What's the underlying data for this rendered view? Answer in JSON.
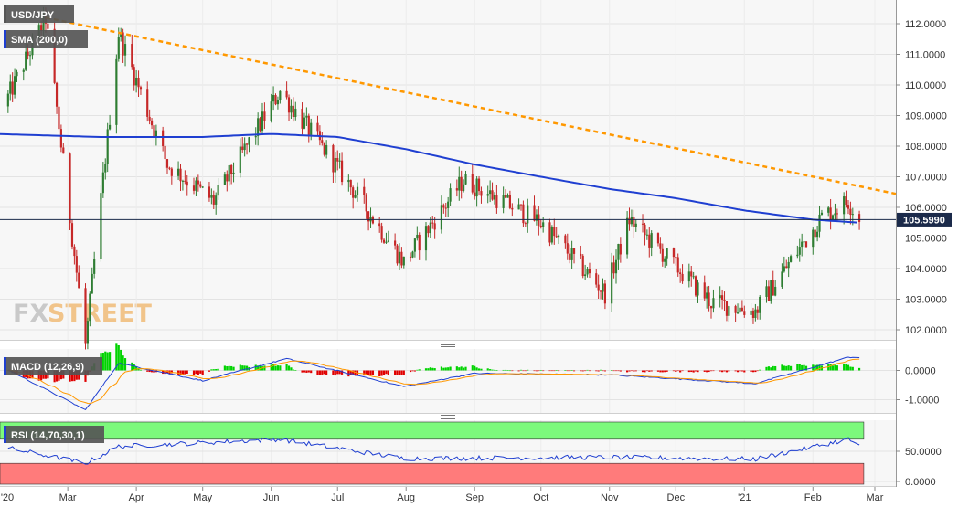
{
  "window": {
    "symbol_label": "USD/JPY"
  },
  "colors": {
    "up": "#2e7d32",
    "down": "#c62828",
    "sma": "#1f3fd1",
    "trend": "#ff9800",
    "macd_line": "#1f3fd1",
    "signal_line": "#ff9800",
    "hist_pos": "#00d300",
    "hist_neg": "#e00000",
    "rsi_line": "#1f3fd1",
    "rsi_ob": "#7cf97c",
    "rsi_os": "#ff7b7b"
  },
  "price_panel": {
    "indicator_tags": [
      "USD/JPY",
      "SMA (200,0)"
    ],
    "y_ticks": [
      "112.0000",
      "111.0000",
      "110.0000",
      "109.0000",
      "108.0000",
      "107.0000",
      "106.0000",
      "105.0000",
      "104.0000",
      "103.0000",
      "102.0000"
    ],
    "current_price": "105.5990",
    "logo_parts": [
      "FX",
      "STREET"
    ]
  },
  "macd_panel": {
    "label": "MACD (12,26,9)",
    "y_ticks": [
      "0.0000",
      "-1.0000"
    ]
  },
  "rsi_panel": {
    "label": "RSI (14,70,30,1)",
    "y_ticks": [
      "50.0000",
      "0.0000"
    ]
  },
  "x_axis": {
    "labels": [
      "'20",
      "Mar",
      "Apr",
      "May",
      "Jun",
      "Jul",
      "Aug",
      "Sep",
      "Oct",
      "Nov",
      "Dec",
      "'21",
      "Feb",
      "Mar"
    ]
  },
  "chart_data": [
    {
      "type": "line",
      "series": [
        {
          "name": "USD/JPY",
          "x": [
            "2020-02-01",
            "2020-02-20",
            "2020-03-09",
            "2020-03-24",
            "2020-04-15",
            "2020-05-06",
            "2020-06-05",
            "2020-06-30",
            "2020-07-31",
            "2020-08-27",
            "2020-10-01",
            "2020-10-30",
            "2020-11-10",
            "2020-12-17",
            "2021-01-06",
            "2021-02-05",
            "2021-02-17",
            "2021-02-22"
          ],
          "values": [
            109.3,
            112.2,
            101.5,
            111.7,
            107.4,
            106.2,
            109.8,
            107.4,
            104.2,
            106.9,
            105.5,
            103.2,
            105.6,
            102.9,
            102.6,
            105.7,
            106.2,
            105.6
          ]
        },
        {
          "name": "SMA (200,0)",
          "x": [
            "2020-01-28",
            "2020-03-15",
            "2020-05-01",
            "2020-06-01",
            "2020-07-01",
            "2020-08-01",
            "2020-09-01",
            "2020-10-01",
            "2020-11-01",
            "2020-12-01",
            "2021-01-01",
            "2021-02-01",
            "2021-02-22"
          ],
          "values": [
            108.4,
            108.3,
            108.3,
            108.4,
            108.3,
            107.9,
            107.4,
            107.0,
            106.6,
            106.3,
            105.9,
            105.6,
            105.5
          ]
        }
      ],
      "current_price": 105.599,
      "ylim": [
        101.6,
        112.5
      ]
    },
    {
      "type": "line",
      "series": [
        {
          "name": "MACD (12,26,9)",
          "x": [
            "2020-02-01",
            "2020-03-09",
            "2020-03-24",
            "2020-05-01",
            "2020-06-08",
            "2020-07-31",
            "2020-09-01",
            "2020-11-01",
            "2021-01-06",
            "2021-02-17",
            "2021-02-22"
          ],
          "values": [
            0.1,
            -1.35,
            0.25,
            -0.35,
            0.4,
            -0.55,
            -0.1,
            -0.15,
            -0.45,
            0.45,
            0.45
          ]
        }
      ],
      "ylim": [
        -1.5,
        0.7
      ]
    },
    {
      "type": "line",
      "series": [
        {
          "name": "RSI (14,70,30,1)",
          "x": [
            "2020-02-01",
            "2020-03-09",
            "2020-03-24",
            "2020-06-05",
            "2020-07-31",
            "2020-11-01",
            "2021-01-06",
            "2021-02-17",
            "2021-02-22"
          ],
          "values": [
            57,
            30,
            58,
            70,
            38,
            40,
            37,
            70,
            60
          ]
        }
      ],
      "ylim": [
        0,
        100
      ]
    }
  ]
}
